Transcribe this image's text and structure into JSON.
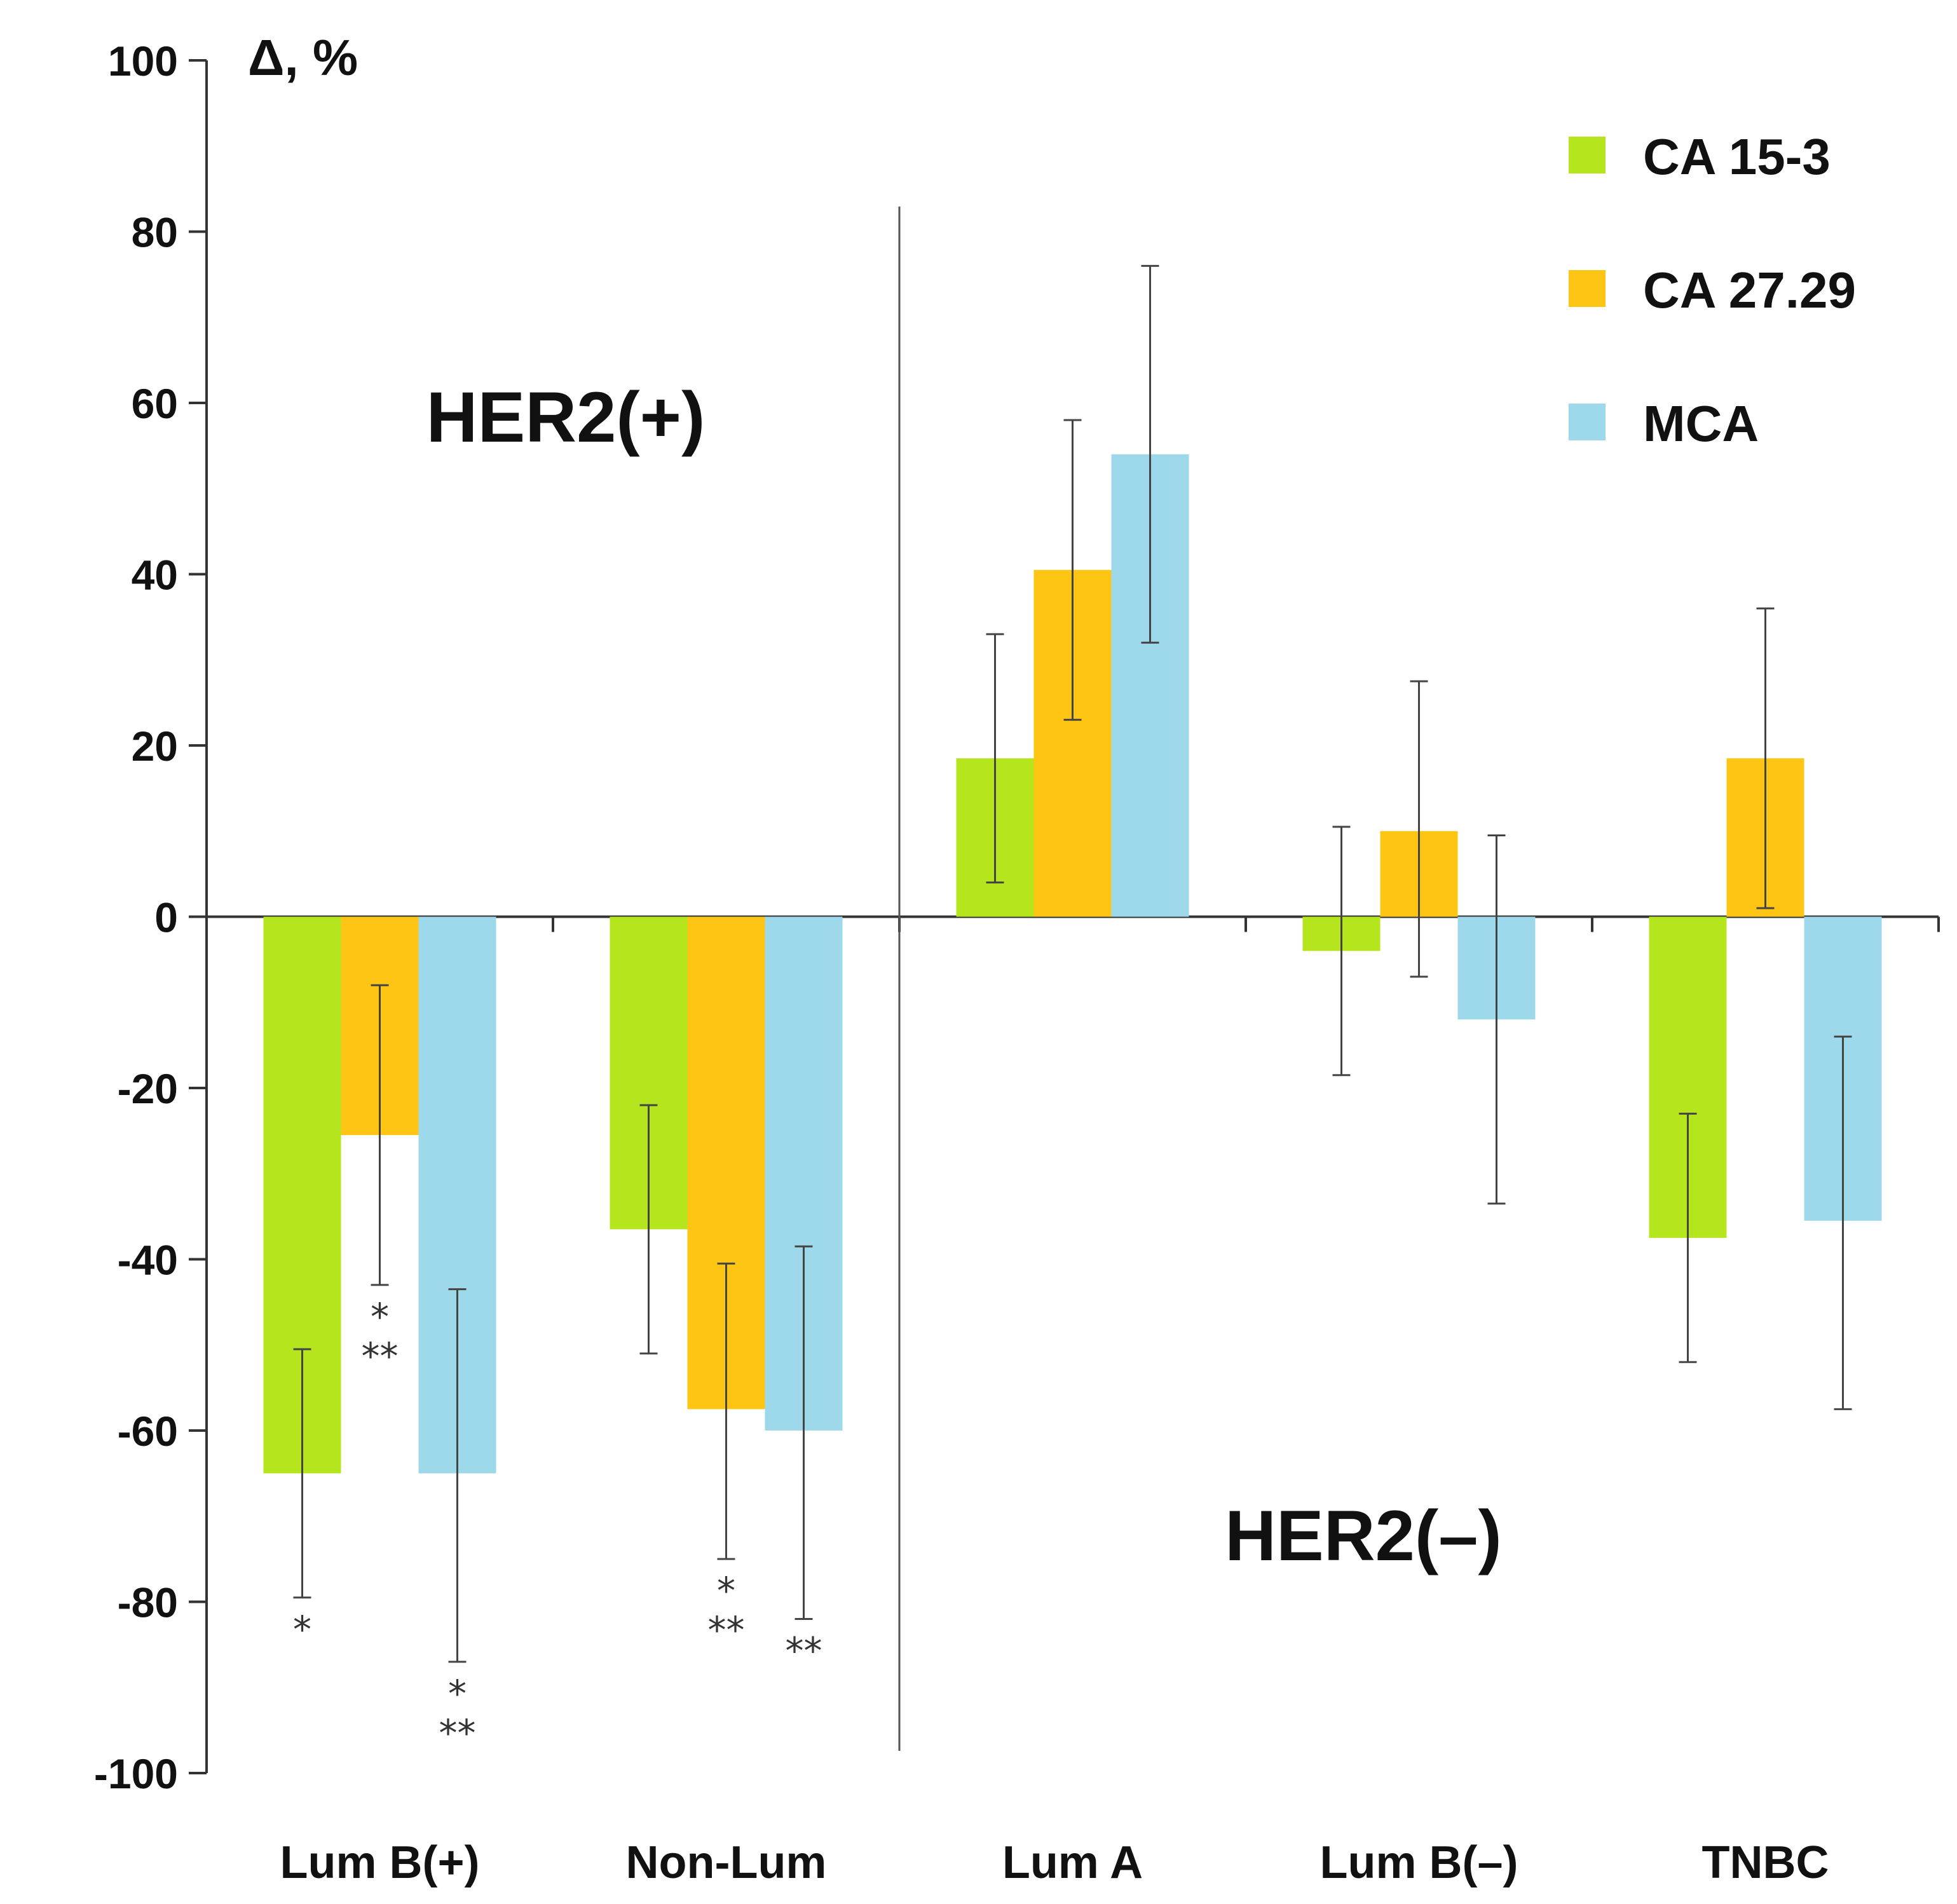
{
  "chart_data": {
    "type": "bar",
    "title": "",
    "ylabel": "Δ, %",
    "xlabel": "",
    "ylim": [
      -100,
      100
    ],
    "yticks": [
      100,
      80,
      60,
      40,
      20,
      0,
      -20,
      -40,
      -60,
      -80,
      -100
    ],
    "categories": [
      "Lum B(+)",
      "Non-Lum",
      "Lum A",
      "Lum B(–)",
      "TNBC"
    ],
    "series": [
      {
        "name": "CA 15-3",
        "color": "#B5E61D",
        "values": [
          -65,
          -36.5,
          18.5,
          -4,
          -37.5
        ],
        "err_low": [
          -79.5,
          -51,
          4,
          -18.5,
          -52
        ],
        "err_high": [
          -50.5,
          -22,
          33,
          10.5,
          -23
        ]
      },
      {
        "name": "CA 27.29",
        "color": "#FFC514",
        "values": [
          -25.5,
          -57.5,
          40.5,
          10,
          18.5
        ],
        "err_low": [
          -43,
          -75,
          23,
          -7,
          1
        ],
        "err_high": [
          -8,
          -40.5,
          58,
          27.5,
          36
        ]
      },
      {
        "name": "MCA",
        "color": "#9DD9EA",
        "values": [
          -65,
          -60,
          54,
          -12,
          -35.5
        ],
        "err_low": [
          -87,
          -82,
          32,
          -33.5,
          -57.5
        ],
        "err_high": [
          -43.5,
          -38.5,
          76,
          9.5,
          -14
        ]
      }
    ],
    "significance": [
      {
        "category": 0,
        "series": 0,
        "lines": [
          "*"
        ]
      },
      {
        "category": 0,
        "series": 1,
        "lines": [
          "*",
          "**"
        ]
      },
      {
        "category": 0,
        "series": 2,
        "lines": [
          "*",
          "**"
        ]
      },
      {
        "category": 1,
        "series": 1,
        "lines": [
          "*",
          "**"
        ]
      },
      {
        "category": 1,
        "series": 2,
        "lines": [
          "**"
        ]
      }
    ],
    "groups": [
      {
        "label": "HER2(+)",
        "categories": [
          0,
          1
        ]
      },
      {
        "label": "HER2(–)",
        "categories": [
          2,
          3,
          4
        ]
      }
    ],
    "legend": {
      "position": "top-right",
      "entries": [
        "CA 15-3",
        "CA 27.29",
        "MCA"
      ]
    },
    "grid": false
  }
}
